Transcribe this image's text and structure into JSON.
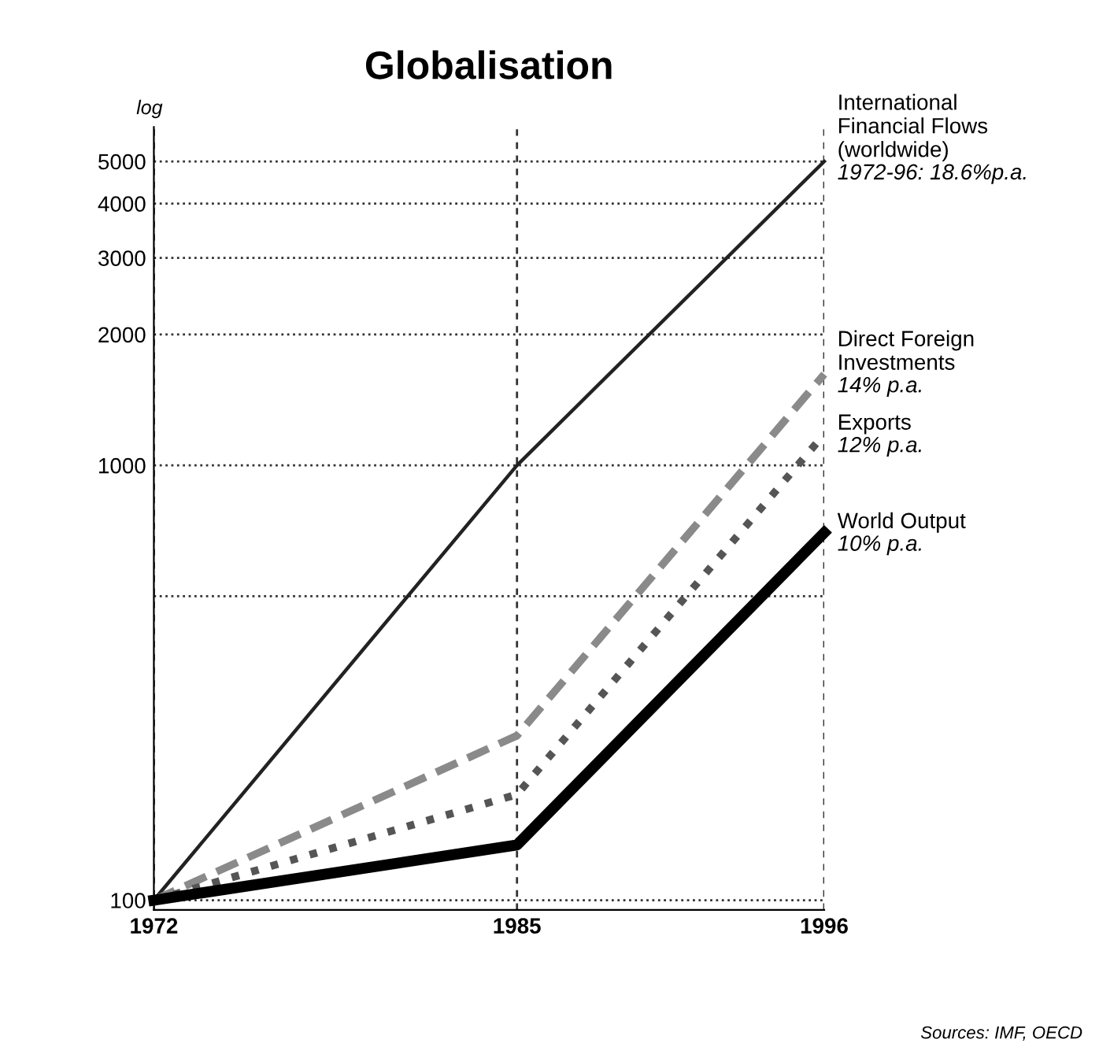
{
  "chart_data": {
    "type": "line",
    "title": "Globalisation",
    "ylabel": "log",
    "log": true,
    "x": [
      1972,
      1985,
      1996
    ],
    "xlim": [
      1972,
      1996
    ],
    "xticks": [
      1972,
      1985,
      1996
    ],
    "ylim": [
      95,
      6000
    ],
    "yticks": [
      100,
      {
        "value": 500,
        "label": null
      },
      1000,
      2000,
      3000,
      4000,
      5000
    ],
    "grid": true,
    "legend": false,
    "series": [
      {
        "name": "International\nFinancial Flows\n(worldwide)",
        "color": "#222222",
        "line_style": "solid",
        "values": [
          100,
          1000,
          5000
        ]
      },
      {
        "name": "Direct Foreign\nInvestments",
        "color": "#8a8a8a",
        "line_style": "dashed",
        "values": [
          100,
          239,
          1620
        ]
      },
      {
        "name": "Exports",
        "color": "#555555",
        "line_style": "dotted",
        "values": [
          100,
          175,
          1180
        ]
      },
      {
        "name": "World Output",
        "color": "#000000",
        "line_style": "solid",
        "values": [
          100,
          134,
          700
        ]
      }
    ],
    "annotations": [
      "1972-96: 18.6%p.a.",
      "14% p.a.",
      "12% p.a.",
      "10% p.a.",
      "Sources: IMF, OECD"
    ]
  }
}
